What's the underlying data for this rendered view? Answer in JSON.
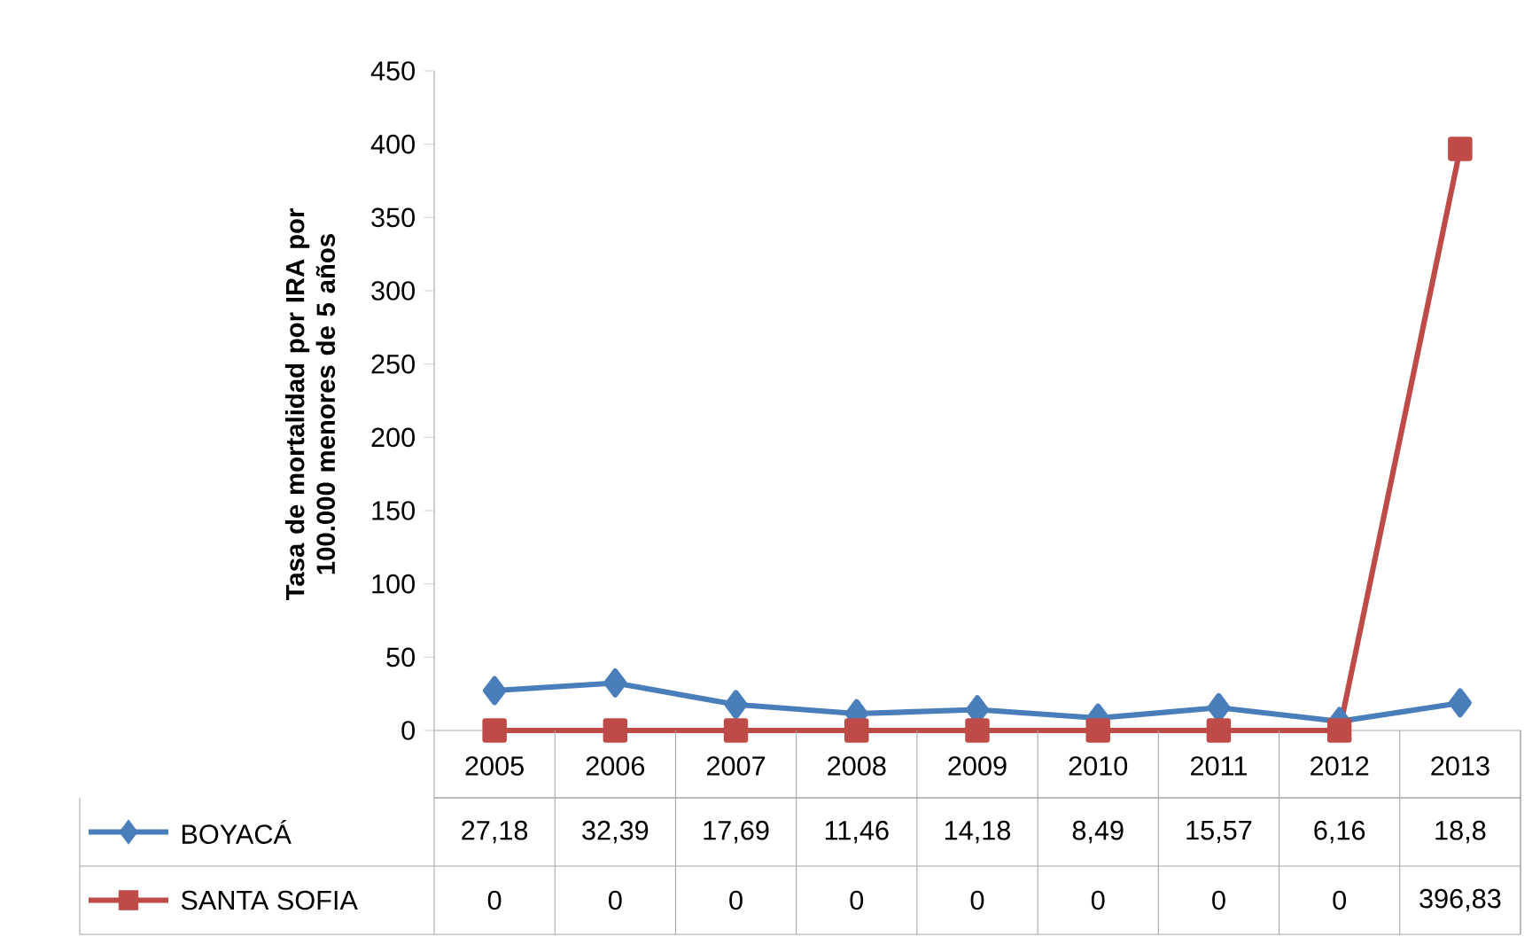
{
  "chart_data": {
    "type": "line",
    "ylabel": "Tasa de mortalidad  por IRA por 100.000 menores de 5 años",
    "categories": [
      "2005",
      "2006",
      "2007",
      "2008",
      "2009",
      "2010",
      "2011",
      "2012",
      "2013"
    ],
    "series": [
      {
        "name": "BOYACÁ",
        "color": "#4a7ebb",
        "marker": "diamond",
        "values": [
          27.18,
          32.39,
          17.69,
          11.46,
          14.18,
          8.49,
          15.57,
          6.16,
          18.8
        ],
        "value_labels": [
          "27,18",
          "32,39",
          "17,69",
          "11,46",
          "14,18",
          "8,49",
          "15,57",
          "6,16",
          "18,8"
        ]
      },
      {
        "name": "SANTA SOFIA",
        "color": "#be4b48",
        "marker": "square",
        "values": [
          0,
          0,
          0,
          0,
          0,
          0,
          0,
          0,
          396.83
        ],
        "value_labels": [
          "0",
          "0",
          "0",
          "0",
          "0",
          "0",
          "0",
          "0",
          "396,83"
        ]
      }
    ],
    "ylim": [
      0,
      450
    ],
    "yticks": [
      0,
      50,
      100,
      150,
      200,
      250,
      300,
      350,
      400,
      450
    ],
    "legend": "bottom",
    "grid": false
  }
}
